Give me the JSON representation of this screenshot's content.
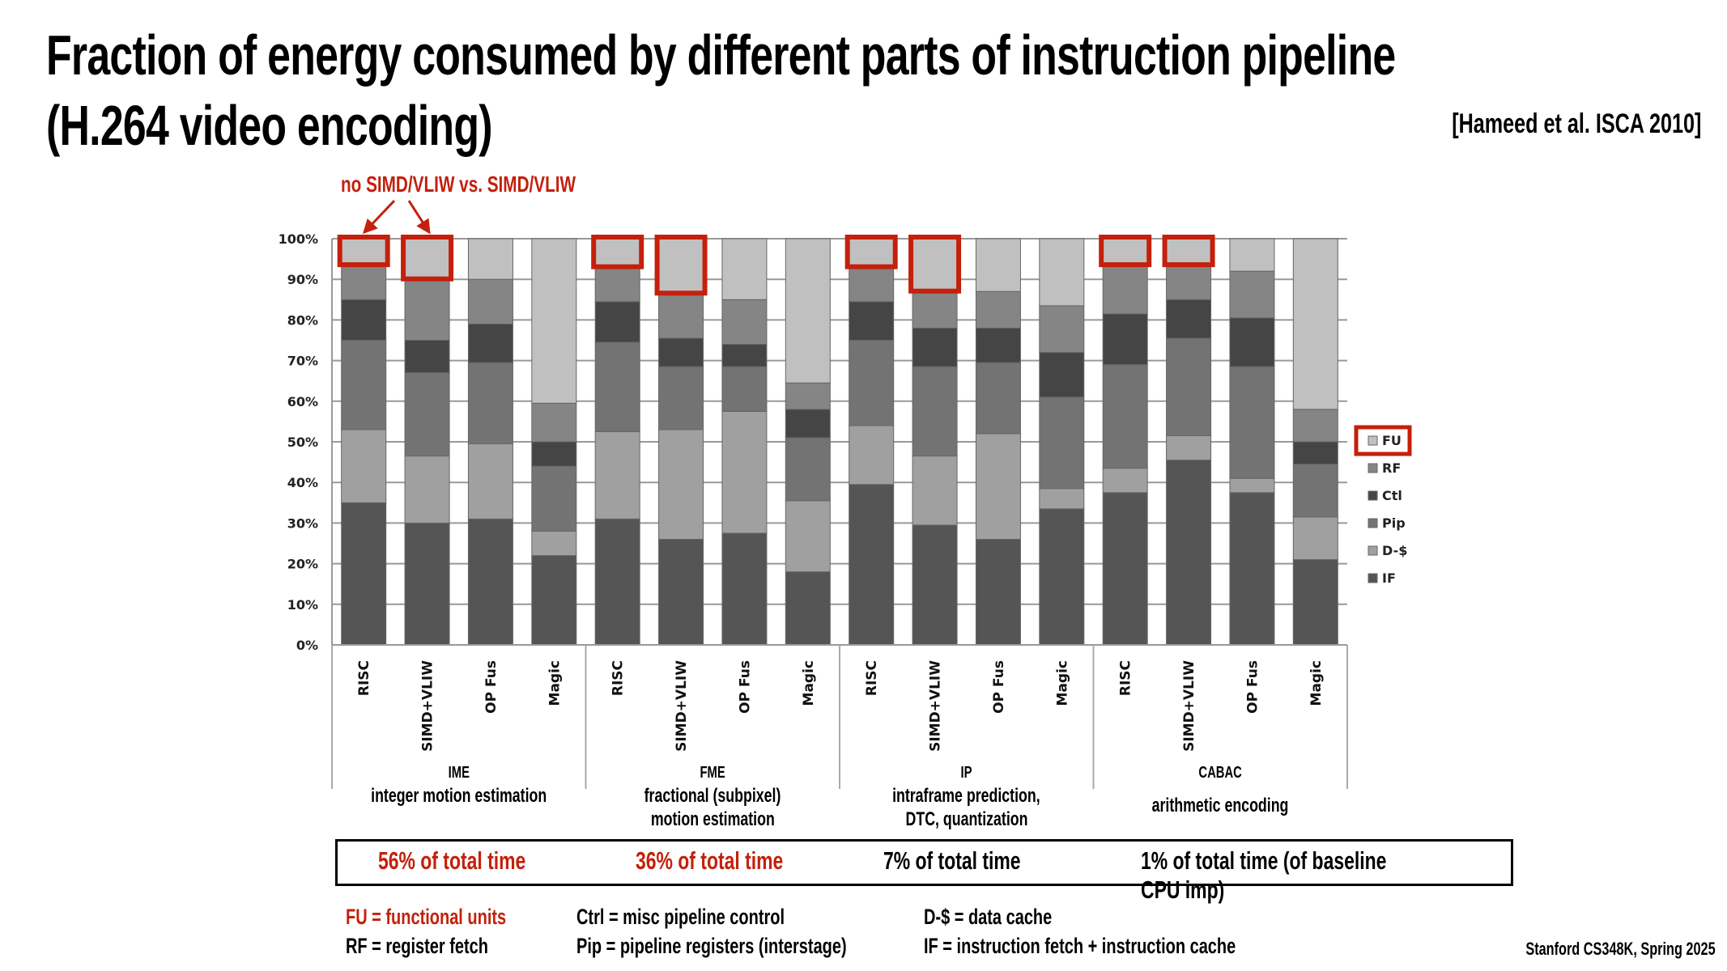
{
  "title": {
    "line1": "Fraction of energy consumed by different parts of instruction pipeline",
    "line2": "(H.264 video encoding)",
    "citation": "[Hameed et al. ISCA 2010]"
  },
  "annotation": "no SIMD/VLIW vs. SIMD/VLIW",
  "chart_data": {
    "type": "bar",
    "stacked": true,
    "ylim": [
      0,
      100
    ],
    "yticks": [
      "0%",
      "10%",
      "20%",
      "30%",
      "40%",
      "50%",
      "60%",
      "70%",
      "80%",
      "90%",
      "100%"
    ],
    "grid": true,
    "legend_position": "right",
    "groups": [
      {
        "name": "IME",
        "desc": [
          "integer motion estimation"
        ]
      },
      {
        "name": "FME",
        "desc": [
          "fractional (subpixel)",
          "motion estimation"
        ]
      },
      {
        "name": "IP",
        "desc": [
          "intraframe prediction,",
          "DTC, quantization"
        ]
      },
      {
        "name": "CABAC",
        "desc": [
          "arithmetic encoding"
        ]
      }
    ],
    "categories": [
      "RISC",
      "SIMD+VLIW",
      "OP Fus",
      "Magic",
      "RISC",
      "SIMD+VLIW",
      "OP Fus",
      "Magic",
      "RISC",
      "SIMD+VLIW",
      "OP Fus",
      "Magic",
      "RISC",
      "SIMD+VLIW",
      "OP Fus",
      "Magic"
    ],
    "highlighted_bars": [
      0,
      1,
      4,
      5,
      8,
      9,
      12,
      13
    ],
    "highlighted_legend": "FU",
    "series": [
      {
        "name": "IF",
        "color": "#555555",
        "values": [
          35,
          30,
          31,
          22,
          31,
          26,
          27.5,
          18,
          39.5,
          29.5,
          26,
          33.5,
          37.5,
          45.5,
          37.5,
          21
        ]
      },
      {
        "name": "D-$",
        "color": "#a0a0a0",
        "values": [
          18,
          16.5,
          18.5,
          6,
          21.5,
          27,
          30,
          17.5,
          14.5,
          17,
          26,
          5,
          6,
          6,
          3.5,
          10.5
        ]
      },
      {
        "name": "Pip",
        "color": "#737373",
        "values": [
          22,
          20.5,
          20,
          16,
          22,
          15.5,
          11,
          15.5,
          21,
          22,
          17.5,
          22.5,
          25.5,
          24,
          27.5,
          13
        ]
      },
      {
        "name": "Ctl",
        "color": "#454545",
        "values": [
          10,
          8,
          9.5,
          6,
          10,
          7,
          5.5,
          7,
          9.5,
          9.5,
          8.5,
          11,
          12.5,
          9.5,
          12,
          5.5
        ]
      },
      {
        "name": "RF",
        "color": "#858585",
        "values": [
          9,
          15.5,
          11,
          9.5,
          9,
          11.5,
          11,
          6.5,
          9,
          9.5,
          9,
          11.5,
          12.5,
          9,
          11.5,
          8
        ]
      },
      {
        "name": "FU",
        "color": "#c0c0c0",
        "values": [
          6,
          9.5,
          10,
          40.5,
          6.5,
          13,
          15,
          35.5,
          6.5,
          12.5,
          13,
          16.5,
          6,
          6,
          8,
          42
        ]
      }
    ]
  },
  "time_share": [
    "56% of total time",
    "36% of total time",
    "7% of total time",
    "1% of total time  (of baseline CPU imp)"
  ],
  "definitions": {
    "fu": "FU = functional units",
    "rf": "RF = register fetch",
    "ctrl": "Ctrl = misc pipeline control",
    "pip": "Pip = pipeline registers (interstage)",
    "dcache": "D-$ = data cache",
    "if": "IF = instruction fetch + instruction cache"
  },
  "footer": "Stanford CS348K, Spring 2025",
  "colors": {
    "accent": "#c4200c"
  }
}
